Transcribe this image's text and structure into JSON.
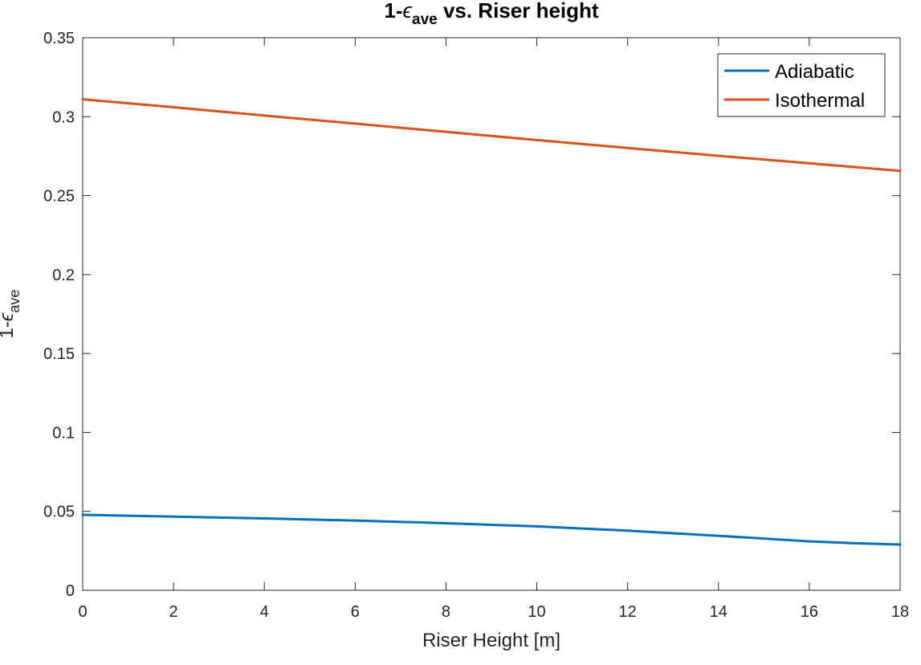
{
  "chart_data": {
    "type": "line",
    "title": {
      "base": "1-",
      "symbol": "ϵ",
      "sub": "ave",
      "rest": " vs. Riser height"
    },
    "xlabel": "Riser Height [m]",
    "ylabel": {
      "base": "1-",
      "symbol": "ϵ",
      "sub": "ave"
    },
    "xlim": [
      0,
      18
    ],
    "ylim": [
      0,
      0.35
    ],
    "xticks": [
      0,
      2,
      4,
      6,
      8,
      10,
      12,
      14,
      16,
      18
    ],
    "xtick_labels": [
      "0",
      "2",
      "4",
      "6",
      "8",
      "10",
      "12",
      "14",
      "16",
      "18"
    ],
    "yticks": [
      0,
      0.05,
      0.1,
      0.15,
      0.2,
      0.25,
      0.3,
      0.35
    ],
    "ytick_labels": [
      "0",
      "0.05",
      "0.1",
      "0.15",
      "0.2",
      "0.25",
      "0.3",
      "0.35"
    ],
    "grid": false,
    "legend": "top-right",
    "series": [
      {
        "name": "Adiabatic",
        "color": "#0072BD",
        "x": [
          0,
          2,
          4,
          6,
          8,
          10,
          12,
          14,
          16,
          17,
          18
        ],
        "y": [
          0.0478,
          0.0467,
          0.0455,
          0.0442,
          0.0425,
          0.0405,
          0.0378,
          0.0345,
          0.031,
          0.0298,
          0.029
        ]
      },
      {
        "name": "Isothermal",
        "color": "#D95319",
        "x": [
          0,
          2,
          4,
          6,
          8,
          10,
          12,
          14,
          16,
          18
        ],
        "y": [
          0.311,
          0.306,
          0.3007,
          0.2956,
          0.2904,
          0.2852,
          0.2802,
          0.2752,
          0.2705,
          0.2657
        ]
      }
    ]
  }
}
